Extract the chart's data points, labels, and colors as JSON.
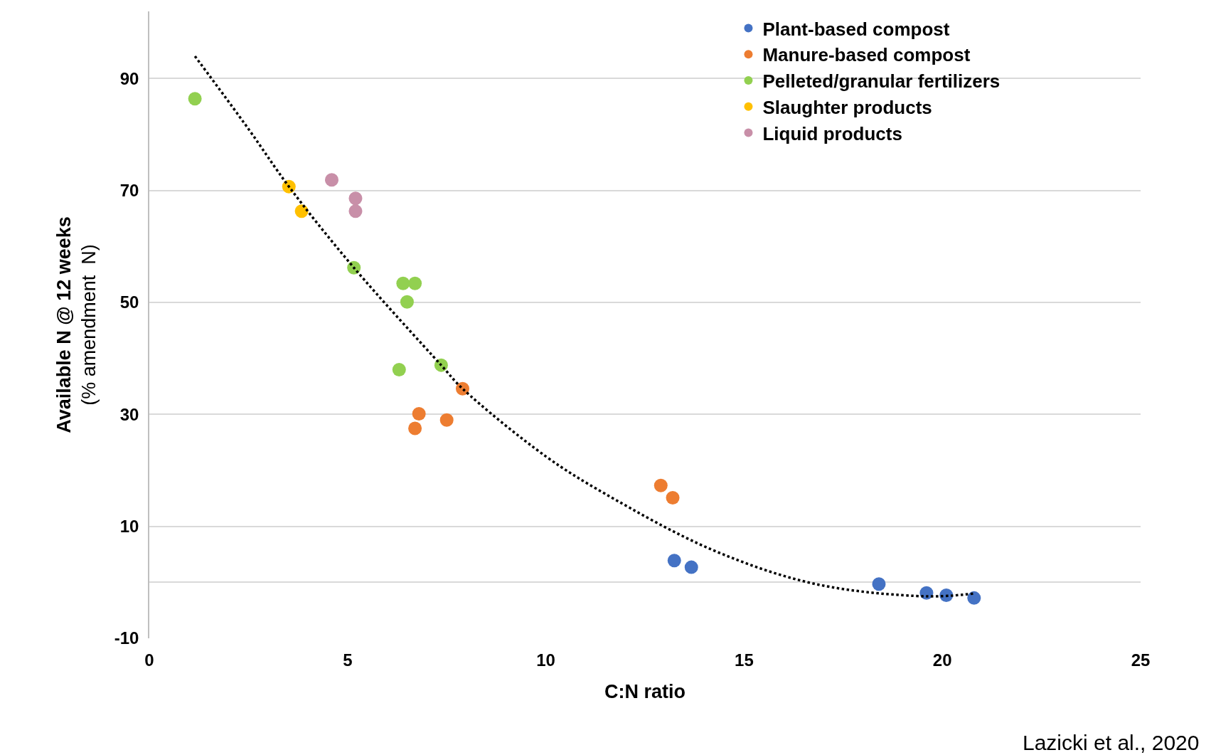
{
  "chart_data": {
    "type": "scatter",
    "xlabel": "C:N ratio",
    "ylabel": "Available N @ 12 weeks\n(% amendment  N)",
    "xlim": [
      0,
      25
    ],
    "xticks": [
      0,
      5,
      10,
      15,
      20,
      25
    ],
    "ylim": [
      -10,
      102
    ],
    "yticks": [
      -10,
      {
        "value": 0,
        "label": null
      },
      10,
      30,
      50,
      70,
      90
    ],
    "grid": "y",
    "legend": "top right",
    "marker": "circle",
    "annotations": [
      "Lazicki et al., 2020"
    ],
    "series": [
      {
        "name": "Plant-based compost",
        "color": "#4472c4",
        "x": [
          13.24,
          13.67,
          18.4,
          19.6,
          20.1,
          20.8
        ],
        "values": [
          3.9,
          2.7,
          -0.3,
          -1.9,
          -2.3,
          -2.8
        ]
      },
      {
        "name": "Manure-based compost",
        "color": "#ed7d31",
        "x": [
          12.9,
          13.2,
          7.9,
          6.8,
          6.7,
          7.5
        ],
        "values": [
          17.3,
          15.1,
          34.6,
          30.1,
          27.5,
          29.0
        ]
      },
      {
        "name": "Pelleted/granular fertilizers",
        "color": "#92d050",
        "x": [
          1.15,
          5.16,
          6.4,
          6.7,
          6.5,
          6.3,
          7.36
        ],
        "values": [
          86.4,
          56.2,
          53.4,
          53.4,
          50.1,
          38.0,
          38.8
        ]
      },
      {
        "name": "Slaughter products",
        "color": "#ffc000",
        "x": [
          3.52,
          3.84
        ],
        "values": [
          70.7,
          66.3
        ]
      },
      {
        "name": "Liquid products",
        "color": "#c88fa8",
        "x": [
          4.6,
          5.2,
          5.2
        ],
        "values": [
          71.9,
          68.6,
          66.3
        ]
      },
      {
        "type": "line",
        "color": "#000000",
        "line_style": "dotted",
        "marker": "none",
        "x": [
          1.15,
          2.5,
          3.52,
          5.16,
          7.36,
          7.9,
          10,
          11.5,
          14.2,
          16.8,
          19.6,
          20.8
        ],
        "values": [
          94,
          81,
          70.7,
          56.2,
          38.8,
          34.6,
          22.5,
          15.8,
          5.8,
          -0.3,
          -2.5,
          -2.0
        ]
      }
    ]
  }
}
